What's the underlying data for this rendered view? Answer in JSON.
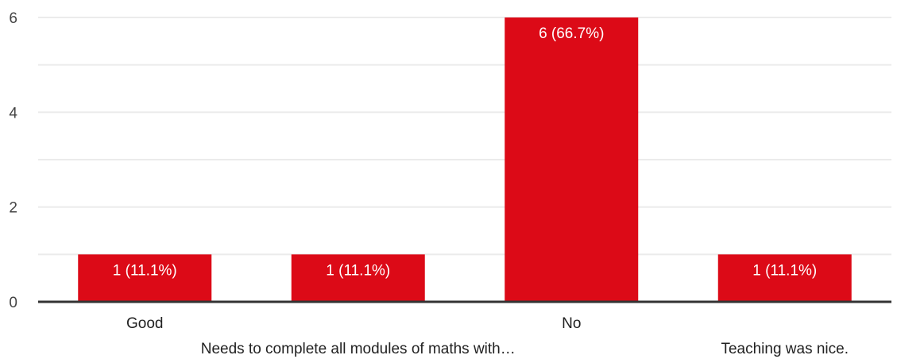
{
  "chart_data": {
    "type": "bar",
    "categories": [
      "Good",
      "Needs to complete all modules of maths with…",
      "No",
      "Teaching was nice."
    ],
    "values": [
      1,
      1,
      6,
      1
    ],
    "data_labels": [
      "1 (11.1%)",
      "1 (11.1%)",
      "6 (66.7%)",
      "1 (11.1%)"
    ],
    "y_ticks": [
      0,
      2,
      4,
      6
    ],
    "ylim": [
      0,
      6
    ],
    "grid": true,
    "bar_color": "#dc0a17",
    "axis_color": "#333333",
    "grid_color": "#ebebeb"
  }
}
